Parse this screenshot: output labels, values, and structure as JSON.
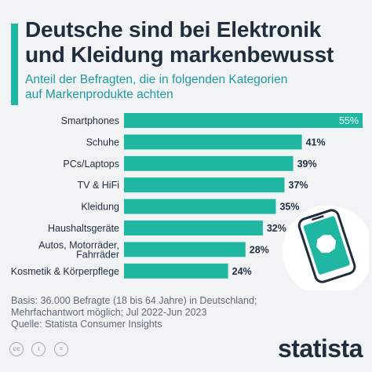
{
  "header": {
    "title_line1": "Deutsche sind bei Elektronik",
    "title_line2": "und Kleidung markenbewusst",
    "subtitle_line1": "Anteil der Befragten, die in folgenden Kategorien",
    "subtitle_line2": "auf Markenprodukte achten"
  },
  "chart_data": {
    "type": "bar",
    "orientation": "horizontal",
    "categories": [
      "Smartphones",
      "Schuhe",
      "PCs/Laptops",
      "TV & HiFi",
      "Kleidung",
      "Haushaltsgeräte",
      "Autos, Motorräder, Fahrräder",
      "Kosmetik & Körperpflege"
    ],
    "category_lines": [
      [
        "Smartphones"
      ],
      [
        "Schuhe"
      ],
      [
        "PCs/Laptops"
      ],
      [
        "TV & HiFi"
      ],
      [
        "Kleidung"
      ],
      [
        "Haushaltsgeräte"
      ],
      [
        "Autos, Motorräder,",
        "Fahrräder"
      ],
      [
        "Kosmetik & Körperpflege"
      ]
    ],
    "values": [
      55,
      41,
      39,
      37,
      35,
      32,
      28,
      24
    ],
    "value_labels": [
      "55%",
      "41%",
      "39%",
      "37%",
      "35%",
      "32%",
      "28%",
      "24%"
    ],
    "unit": "%",
    "xlim": [
      0,
      55
    ],
    "grid": false,
    "bar_color": "#1fb7a2"
  },
  "footer": {
    "note_line1": "Basis: 36.000 Befragte (18 bis 64 Jahre) in Deutschland;",
    "note_line2": "Mehrfachantwort möglich; Jul 2022-Jun 2023",
    "source": "Quelle: Statista Consumer Insights",
    "logo": "statista",
    "icons": [
      "cc-icon",
      "attribution-icon",
      "equals-icon"
    ]
  },
  "colors": {
    "accent": "#1fb7a2",
    "title": "#1f2d3d",
    "subtitle": "#1f9aa4",
    "background": "#f2f3f5"
  }
}
